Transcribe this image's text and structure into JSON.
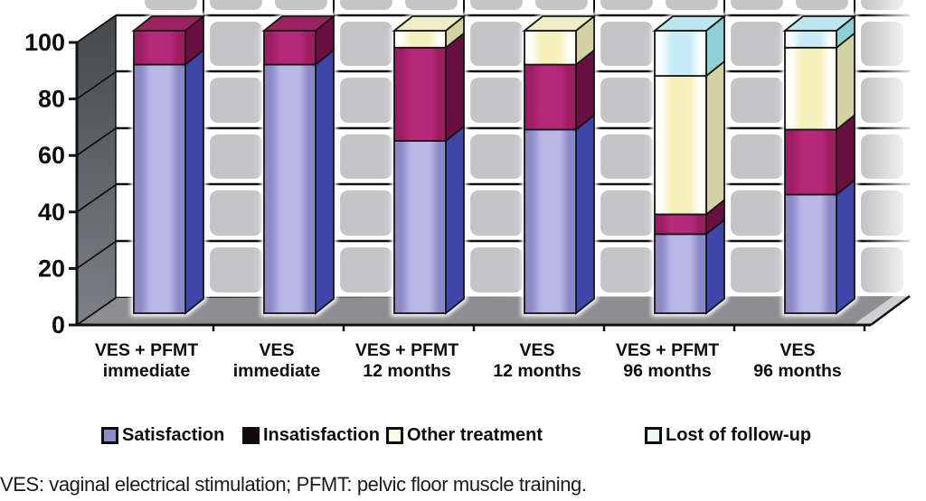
{
  "figure": {
    "footnote": "VES: vaginal electrical stimulation; PFMT: pelvic floor muscle training."
  },
  "legend": {
    "items": [
      {
        "label": "Satisfaction",
        "swatch": "#8d8bc9"
      },
      {
        "label": "Insatisfaction",
        "swatch": "#17080f"
      },
      {
        "label": "Other treatment",
        "swatch": "#fdfbe8"
      },
      {
        "label": "Lost of follow-up",
        "swatch": "#ecf7fb"
      }
    ]
  },
  "chart_data": {
    "type": "bar",
    "stacked": true,
    "units": "percent",
    "title": "",
    "xlabel": "",
    "ylabel": "",
    "ylim": [
      0,
      100
    ],
    "yticks": [
      0,
      20,
      40,
      60,
      80,
      100
    ],
    "grid": "horizontal",
    "legend_position": "bottom",
    "categories": [
      [
        "VES + PFMT",
        "immediate"
      ],
      [
        "VES",
        "immediate"
      ],
      [
        "VES + PFMT",
        "12 months"
      ],
      [
        "VES",
        "12 months"
      ],
      [
        "VES + PFMT",
        "96 months"
      ],
      [
        "VES",
        "96 months"
      ]
    ],
    "series": [
      {
        "name": "Satisfaction",
        "values": [
          88,
          88,
          61,
          65,
          28,
          42
        ],
        "color_front": "#8a88c6",
        "color_center": "#b9b7e6",
        "color_side": "#3f47a8",
        "color_top": "#7a78ba"
      },
      {
        "name": "Insatisfaction",
        "values": [
          12,
          12,
          33,
          23,
          7,
          23
        ],
        "color_front": "#9e1c60",
        "color_center": "#b5297a",
        "color_side": "#6a1040",
        "color_top": "#9c2161"
      },
      {
        "name": "Other treatment",
        "values": [
          0,
          0,
          6,
          12,
          49,
          29
        ],
        "color_front": "#fffffa",
        "color_center": "#f6f0bd",
        "color_side": "#d2d2a2",
        "color_top": "#efedc6"
      },
      {
        "name": "Lost of follow-up",
        "values": [
          0,
          0,
          0,
          0,
          16,
          6
        ],
        "color_front": "#fbffff",
        "color_center": "#c8ebf8",
        "color_side": "#8fcfd6",
        "color_top": "#bce7ef"
      }
    ]
  },
  "scene_colors": {
    "tile": "#c5c5c7",
    "wall_bg": "#ffffff",
    "left_wall_top": "#46494c",
    "left_wall_bottom": "#7d8084",
    "floor": "#8e8e92",
    "outline": "#111111",
    "text": "#0d0d0d"
  }
}
